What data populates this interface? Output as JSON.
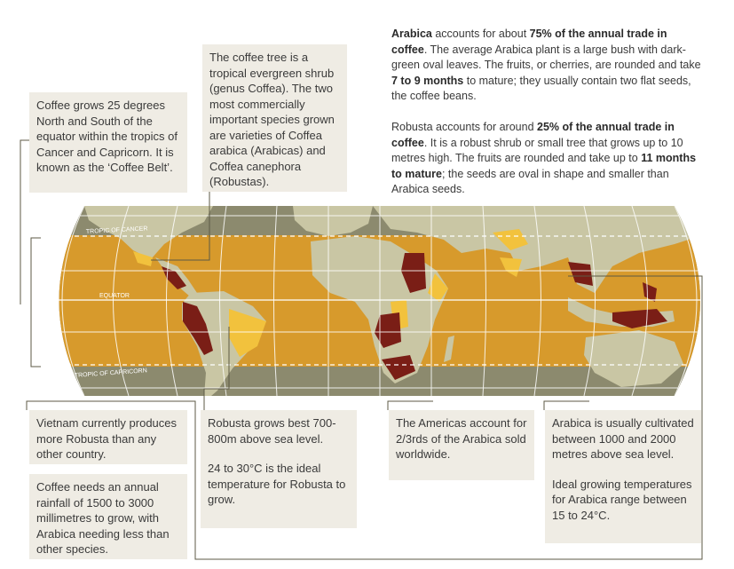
{
  "boxes": {
    "belt": "Coffee grows 25 degrees North and South of the equator within the tropics of Cancer and Capricorn. It is known as the ‘Coffee Belt’.",
    "tree": "The coffee tree is a tropical evergreen shrub (genus Coffea). The two most commercially important species grown are varieties of Coffea arabica (Arabicas) and Coffea canephora (Robustas).",
    "vietnam": "Vietnam currently produces more Robusta than any other country.",
    "rainfall": "Coffee needs an annual rainfall of 1500 to 3000 millimetres to grow, with Arabica needing less than other species.",
    "robusta_level": "Robusta grows best 700-800m above sea level.",
    "robusta_temp": "24 to 30°C is the ideal temperature for Robusta to grow.",
    "americas": "The Americas account for 2/3rds of the Arabica sold worldwide.",
    "arabica_level": "Arabica is usually cultivated between 1000 and 2000 metres above sea level.",
    "arabica_temp": "Ideal growing temperatures for Arabica range between 15 to 24°C."
  },
  "arabica_para": {
    "t1": "Arabica",
    "t2": " accounts for about ",
    "t3": "75% of the annual trade in coffee",
    "t4": ". The average Arabica plant is a large bush with dark-green oval leaves. The fruits, or cherries, are rounded and take ",
    "t5": "7 to 9 months",
    "t6": " to mature; they usually contain two flat seeds, the coffee beans."
  },
  "robusta_para": {
    "t1": "Robusta accounts for around ",
    "t2": "25% of the annual trade in coffee",
    "t3": ". It is a robust shrub or small tree that grows up to 10 metres high. The fruits are rounded and take up to ",
    "t4": "11 months to mature",
    "t5": "; the seeds are oval in shape and smaller than Arabica seeds."
  },
  "map_labels": {
    "cancer": "TROPIC OF CANCER",
    "equator": "EQUATOR",
    "capricorn": "TROPIC OF CAPRICORN"
  },
  "colors": {
    "ocean": "#8c8a6e",
    "belt": "#d79a2c",
    "land": "#c9c6a4",
    "arabica": "#f2c23d",
    "robusta": "#7a1e16",
    "box_bg": "#efece4",
    "leader": "#5d5a45"
  }
}
